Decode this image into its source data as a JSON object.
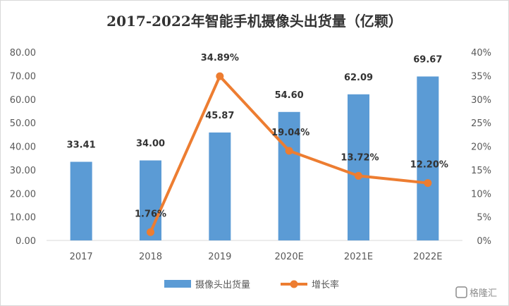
{
  "chart_data": {
    "type": "bar",
    "title": "2017-2022年智能手机摄像头出货量（亿颗）",
    "categories": [
      "2017",
      "2018",
      "2019",
      "2020E",
      "2021E",
      "2022E"
    ],
    "series": [
      {
        "name": "摄像头出货量",
        "type": "bar",
        "axis": "left",
        "color": "#5b9bd5",
        "values": [
          33.41,
          34.0,
          45.87,
          54.6,
          62.09,
          69.67
        ],
        "labels": [
          "33.41",
          "34.00",
          "45.87",
          "54.60",
          "62.09",
          "69.67"
        ]
      },
      {
        "name": "增长率",
        "type": "line",
        "axis": "right",
        "color": "#ed7d31",
        "values": [
          null,
          1.76,
          34.89,
          19.04,
          13.72,
          12.2
        ],
        "labels": [
          "",
          "1.76%",
          "34.89%",
          "19.04%",
          "13.72%",
          "12.20%"
        ]
      }
    ],
    "left_axis": {
      "min": 0,
      "max": 80,
      "ticks": [
        "0.00",
        "10.00",
        "20.00",
        "30.00",
        "40.00",
        "50.00",
        "60.00",
        "70.00",
        "80.00"
      ]
    },
    "right_axis": {
      "min": 0,
      "max": 40,
      "ticks": [
        "0%",
        "5%",
        "10%",
        "15%",
        "20%",
        "25%",
        "30%",
        "35%",
        "40%"
      ]
    },
    "legend_position": "bottom",
    "grid": false
  },
  "watermark": "格隆汇"
}
